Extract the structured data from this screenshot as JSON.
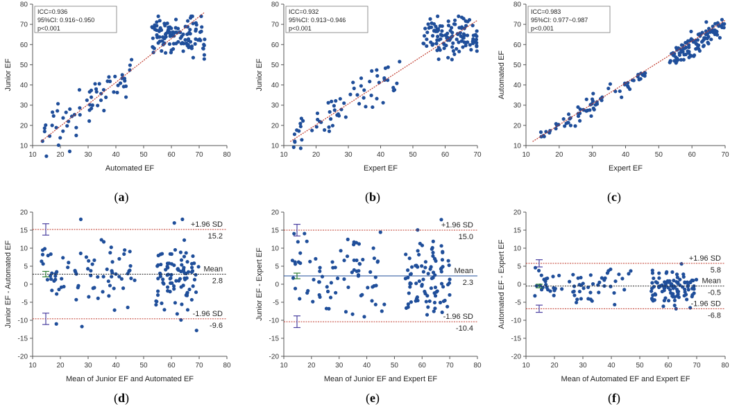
{
  "figure": {
    "panels": [
      {
        "tag": "a",
        "type": "scatter"
      },
      {
        "tag": "b",
        "type": "scatter"
      },
      {
        "tag": "c",
        "type": "scatter"
      },
      {
        "tag": "d",
        "type": "bland-altman"
      },
      {
        "tag": "e",
        "type": "bland-altman"
      },
      {
        "tag": "f",
        "type": "bland-altman"
      }
    ]
  },
  "chart_data": [
    {
      "type": "scatter",
      "label": "(a)",
      "xlabel": "Automated EF",
      "ylabel": "Junior EF",
      "xlim": [
        10,
        80
      ],
      "ylim": [
        10,
        80
      ],
      "xticks": [
        10,
        20,
        30,
        40,
        50,
        60,
        70,
        80
      ],
      "yticks": [
        10,
        20,
        30,
        40,
        50,
        60,
        70,
        80
      ],
      "stats": [
        "ICC=0.936",
        "95%CI:  0.916~0.950",
        "p<0.001"
      ],
      "line": {
        "color": "#c0392b",
        "x": [
          13,
          72
        ],
        "y": [
          12,
          76
        ]
      },
      "marker_color": "#1f4e9a"
    },
    {
      "type": "scatter",
      "label": "(b)",
      "xlabel": "Expert EF",
      "ylabel": "Junior EF",
      "xlim": [
        10,
        70
      ],
      "ylim": [
        10,
        80
      ],
      "xticks": [
        10,
        20,
        30,
        40,
        50,
        60,
        70
      ],
      "yticks": [
        10,
        20,
        30,
        40,
        50,
        60,
        70,
        80
      ],
      "stats": [
        "ICC=0.932",
        "95%CI:  0.913~0.946",
        "p<0.001"
      ],
      "line": {
        "color": "#c0392b",
        "x": [
          12,
          70
        ],
        "y": [
          12,
          72
        ]
      },
      "marker_color": "#1f4e9a"
    },
    {
      "type": "scatter",
      "label": "(c)",
      "xlabel": "Expert EF",
      "ylabel": "Automated EF",
      "xlim": [
        10,
        70
      ],
      "ylim": [
        10,
        80
      ],
      "xticks": [
        10,
        20,
        30,
        40,
        50,
        60,
        70
      ],
      "yticks": [
        10,
        20,
        30,
        40,
        50,
        60,
        70,
        80
      ],
      "stats": [
        "ICC=0.983",
        "95%CI:  0.977~0.987",
        "p<0.001"
      ],
      "line": {
        "color": "#c0392b",
        "x": [
          12,
          70
        ],
        "y": [
          12,
          72
        ]
      },
      "marker_color": "#1f4e9a"
    },
    {
      "type": "bland-altman",
      "label": "(d)",
      "xlabel": "Mean of Junior EF and Automated EF",
      "ylabel": "Junior EF - Automated EF",
      "xlim": [
        10,
        80
      ],
      "ylim": [
        -20,
        20
      ],
      "xticks": [
        10,
        20,
        30,
        40,
        50,
        60,
        70,
        80
      ],
      "yticks": [
        -20,
        -15,
        -10,
        -5,
        0,
        5,
        10,
        15,
        20
      ],
      "upper": {
        "label": "+1.96 SD",
        "value": 15.2,
        "text": "15.2"
      },
      "mean": {
        "label": "Mean",
        "value": 2.8,
        "text": "2.8"
      },
      "lower": {
        "label": "-1.96 SD",
        "value": -9.6,
        "text": "-9.6"
      },
      "mean_line_color": "#222222",
      "marker_color": "#1f4e9a"
    },
    {
      "type": "bland-altman",
      "label": "(e)",
      "xlabel": "Mean of Junior EF and Expert EF",
      "ylabel": "Junior EF - Expert EF",
      "xlim": [
        10,
        80
      ],
      "ylim": [
        -20,
        20
      ],
      "xticks": [
        10,
        20,
        30,
        40,
        50,
        60,
        70,
        80
      ],
      "yticks": [
        -20,
        -15,
        -10,
        -5,
        0,
        5,
        10,
        15,
        20
      ],
      "upper": {
        "label": "+1.96 SD",
        "value": 15.0,
        "text": "15.0"
      },
      "mean": {
        "label": "Mean",
        "value": 2.3,
        "text": "2.3"
      },
      "lower": {
        "label": "-1.96 SD",
        "value": -10.4,
        "text": "-10.4"
      },
      "mean_line_color": "#1f4e9a",
      "marker_color": "#1f4e9a"
    },
    {
      "type": "bland-altman",
      "label": "(f)",
      "xlabel": "Mean of Automated EF and Expert EF",
      "ylabel": "Automated EF - Expert EF",
      "xlim": [
        10,
        80
      ],
      "ylim": [
        -20,
        20
      ],
      "xticks": [
        10,
        20,
        30,
        40,
        50,
        60,
        70,
        80
      ],
      "yticks": [
        -20,
        -15,
        -10,
        -5,
        0,
        5,
        10,
        15,
        20
      ],
      "upper": {
        "label": "+1.96 SD",
        "value": 5.8,
        "text": "5.8"
      },
      "mean": {
        "label": "Mean",
        "value": -0.5,
        "text": "-0.5"
      },
      "lower": {
        "label": "-1.96 SD",
        "value": -6.8,
        "text": "-6.8"
      },
      "mean_line_color": "#222222",
      "marker_color": "#1f4e9a"
    }
  ]
}
